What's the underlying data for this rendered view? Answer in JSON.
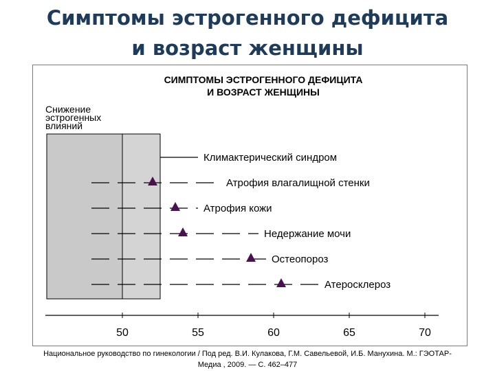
{
  "slide": {
    "title_line1": "Симптомы эстрогенного дефицита",
    "title_line2": "и возраст женщины"
  },
  "figure": {
    "title_line1": "СИМПТОМЫ ЭСТРОГЕННОГО ДЕФИЦИТА",
    "title_line2": "И ВОЗРАСТ ЖЕНЩИНЫ",
    "legend_line1": "Снижение",
    "legend_line2": "эстрогенных",
    "legend_line3": "влияний",
    "axis": {
      "min": 45,
      "max": 70,
      "ticks": [
        50,
        55,
        60,
        65,
        70
      ]
    },
    "shaded_range": [
      45,
      50
    ],
    "symptoms": [
      {
        "label": "Климактерический синдром",
        "onset": null,
        "line_end": 55,
        "style": "solid"
      },
      {
        "label": "Атрофия влагалищной стенки",
        "onset": 52,
        "line_end": 56.5,
        "style": "dashed"
      },
      {
        "label": "Атрофия кожи",
        "onset": 53.5,
        "line_end": 55,
        "style": "dashed"
      },
      {
        "label": "Недержание мочи",
        "onset": 54,
        "line_end": 59,
        "style": "dashed"
      },
      {
        "label": "Остеопороз",
        "onset": 58.5,
        "line_end": 59.5,
        "style": "dashed"
      },
      {
        "label": "Атеросклероз",
        "onset": 60.5,
        "line_end": 63,
        "style": "dashed"
      }
    ],
    "marker_color": "#4a1050"
  },
  "citation": {
    "line1": "Национальное руководство по гинекологии / Под ред. В.И. Кулакова, Г.М. Савельевой, И.Б. Манухина. М.: ГЭОТАР-",
    "line2": "Медиа , 2009. — С. 462–477"
  }
}
